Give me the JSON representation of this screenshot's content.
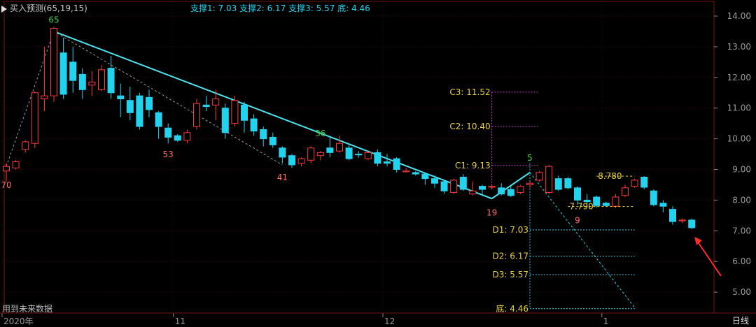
{
  "header": {
    "indicator": "买入预测(65,19,15)",
    "supports": [
      {
        "label": "支撑1:",
        "value": "7.03"
      },
      {
        "label": "支撑2:",
        "value": "6.17"
      },
      {
        "label": "支撑3:",
        "value": "5.57"
      },
      {
        "label": "底:",
        "value": "4.46"
      }
    ]
  },
  "footer_note": "用到未来数据",
  "period_label": "日线",
  "colors": {
    "up": "#ff3b3b",
    "down": "#22d3ee",
    "accent": "#e8d23a",
    "purple": "#c03ec0",
    "grid": "#3a0b0b"
  },
  "chart_data": {
    "type": "candlestick",
    "ylim": [
      4.3,
      14.3
    ],
    "y_ticks": [
      "14.00",
      "13.00",
      "12.00",
      "11.00",
      "10.00",
      "9.00",
      "8.00",
      "7.00",
      "6.00",
      "5.00"
    ],
    "x_ticks": [
      {
        "label": "2020年",
        "at": 0
      },
      {
        "label": "11",
        "at": 18
      },
      {
        "label": "12",
        "at": 40
      },
      {
        "label": "1",
        "at": 63
      }
    ],
    "grid": true,
    "candles": [
      [
        8.95,
        9.1,
        9.2,
        8.6
      ],
      [
        9.05,
        9.25,
        9.3,
        9.0
      ],
      [
        9.65,
        9.9,
        9.95,
        9.55
      ],
      [
        9.85,
        11.5,
        11.55,
        9.7
      ],
      [
        11.3,
        11.4,
        13.0,
        10.9
      ],
      [
        11.4,
        13.6,
        13.65,
        11.2
      ],
      [
        12.8,
        11.45,
        13.3,
        11.3
      ],
      [
        12.5,
        11.9,
        13.0,
        11.5
      ],
      [
        12.1,
        11.6,
        12.3,
        11.3
      ],
      [
        11.75,
        11.85,
        12.2,
        11.4
      ],
      [
        11.6,
        12.25,
        12.4,
        11.55
      ],
      [
        12.3,
        11.5,
        12.7,
        11.3
      ],
      [
        11.4,
        11.3,
        11.8,
        10.7
      ],
      [
        11.25,
        10.85,
        11.7,
        10.6
      ],
      [
        11.4,
        10.4,
        11.5,
        10.3
      ],
      [
        11.35,
        10.95,
        11.6,
        10.7
      ],
      [
        10.85,
        10.4,
        10.9,
        10.0
      ],
      [
        10.35,
        10.05,
        10.5,
        9.85
      ],
      [
        10.1,
        9.95,
        10.15,
        9.9
      ],
      [
        9.95,
        10.2,
        10.3,
        9.85
      ],
      [
        10.4,
        11.15,
        11.3,
        10.3
      ],
      [
        11.1,
        11.05,
        11.4,
        10.9
      ],
      [
        11.1,
        11.3,
        11.6,
        10.6
      ],
      [
        11.0,
        10.2,
        11.15,
        10.0
      ],
      [
        10.5,
        11.25,
        11.4,
        10.4
      ],
      [
        11.1,
        10.6,
        11.2,
        10.2
      ],
      [
        10.65,
        10.25,
        10.8,
        10.1
      ],
      [
        10.3,
        10.0,
        10.4,
        9.75
      ],
      [
        10.05,
        9.8,
        10.2,
        9.7
      ],
      [
        9.7,
        9.4,
        9.75,
        9.2
      ],
      [
        9.45,
        9.15,
        9.5,
        9.05
      ],
      [
        9.2,
        9.35,
        9.4,
        9.1
      ],
      [
        9.3,
        9.7,
        9.75,
        9.2
      ],
      [
        9.45,
        9.55,
        9.6,
        9.3
      ],
      [
        9.7,
        9.55,
        10.05,
        9.4
      ],
      [
        9.6,
        9.85,
        10.1,
        9.55
      ],
      [
        9.7,
        9.35,
        9.8,
        9.3
      ],
      [
        9.5,
        9.48,
        9.6,
        9.38
      ],
      [
        9.35,
        9.55,
        9.6,
        9.3
      ],
      [
        9.55,
        9.2,
        9.65,
        9.1
      ],
      [
        9.25,
        9.2,
        9.5,
        9.1
      ],
      [
        9.35,
        9.0,
        9.4,
        8.9
      ],
      [
        8.95,
        8.95,
        9.05,
        8.9
      ],
      [
        8.9,
        8.85,
        8.95,
        8.8
      ],
      [
        8.85,
        8.7,
        8.9,
        8.5
      ],
      [
        8.7,
        8.55,
        8.8,
        8.4
      ],
      [
        8.6,
        8.3,
        8.65,
        8.2
      ],
      [
        8.25,
        8.65,
        8.7,
        8.2
      ],
      [
        8.75,
        8.35,
        8.85,
        8.3
      ],
      [
        8.2,
        8.3,
        8.6,
        8.15
      ],
      [
        8.45,
        8.35,
        8.5,
        8.2
      ],
      [
        8.42,
        8.45,
        8.5,
        8.35
      ],
      [
        8.4,
        8.2,
        8.55,
        8.15
      ],
      [
        8.35,
        8.15,
        8.45,
        8.1
      ],
      [
        8.25,
        8.45,
        8.5,
        8.2
      ],
      [
        8.5,
        8.55,
        8.6,
        8.4
      ],
      [
        8.65,
        8.9,
        8.95,
        8.6
      ],
      [
        8.25,
        9.1,
        9.15,
        8.2
      ],
      [
        8.7,
        8.35,
        8.8,
        8.3
      ],
      [
        8.7,
        8.4,
        8.75,
        8.35
      ],
      [
        8.4,
        8.0,
        8.45,
        7.85
      ],
      [
        8.0,
        7.95,
        8.2,
        7.85
      ],
      [
        8.1,
        7.82,
        8.15,
        7.75
      ],
      [
        7.9,
        7.82,
        7.95,
        7.78
      ],
      [
        7.8,
        8.1,
        8.2,
        7.75
      ],
      [
        8.15,
        8.4,
        8.5,
        8.1
      ],
      [
        8.45,
        8.65,
        8.7,
        8.4
      ],
      [
        8.75,
        8.42,
        8.78,
        8.35
      ],
      [
        8.3,
        7.85,
        8.35,
        7.8
      ],
      [
        7.9,
        7.8,
        8.0,
        7.6
      ],
      [
        7.7,
        7.3,
        7.8,
        7.2
      ],
      [
        7.35,
        7.35,
        7.4,
        7.25
      ],
      [
        7.35,
        7.1,
        7.4,
        7.05
      ]
    ],
    "marks": [
      {
        "label": "70",
        "at": 0,
        "price": 8.9,
        "pos": "below"
      },
      {
        "label": "65",
        "at": 5,
        "price": 13.6,
        "pos": "above"
      },
      {
        "label": "53",
        "at": 17,
        "price": 9.9,
        "pos": "below"
      },
      {
        "label": "41",
        "at": 29,
        "price": 9.15,
        "pos": "below"
      },
      {
        "label": "36",
        "at": 33,
        "price": 9.9,
        "pos": "above"
      },
      {
        "label": "19",
        "at": 51,
        "price": 8.0,
        "pos": "below"
      },
      {
        "label": "5",
        "at": 55,
        "price": 9.1,
        "pos": "above"
      },
      {
        "label": "9",
        "at": 60,
        "price": 7.75,
        "pos": "below"
      }
    ],
    "trend_line": [
      [
        5,
        13.5
      ],
      [
        51,
        8.05
      ],
      [
        55,
        8.9
      ]
    ],
    "dashed_lines": [
      [
        [
          0,
          9.1
        ],
        [
          5,
          13.5
        ],
        [
          29,
          9.15
        ]
      ],
      [
        [
          55,
          8.9
        ],
        [
          66,
          4.5
        ]
      ]
    ],
    "levels": [
      {
        "label": "C3: 11.52",
        "value": 11.52,
        "kind": "C"
      },
      {
        "label": "C2: 10.40",
        "value": 10.4,
        "kind": "C"
      },
      {
        "label": "C1: 9.13",
        "value": 9.13,
        "kind": "C"
      },
      {
        "label": "D1: 7.03",
        "value": 7.03,
        "kind": "D"
      },
      {
        "label": "D2: 6.17",
        "value": 6.17,
        "kind": "D"
      },
      {
        "label": "D3: 5.57",
        "value": 5.57,
        "kind": "D"
      },
      {
        "label": "底: 4.46",
        "value": 4.46,
        "kind": "D"
      }
    ],
    "annotations": [
      {
        "label": "8.780",
        "value": 8.78,
        "from": 62,
        "to": 66
      },
      {
        "label": "7.790",
        "value": 7.79,
        "from": 59,
        "to": 66
      }
    ]
  }
}
